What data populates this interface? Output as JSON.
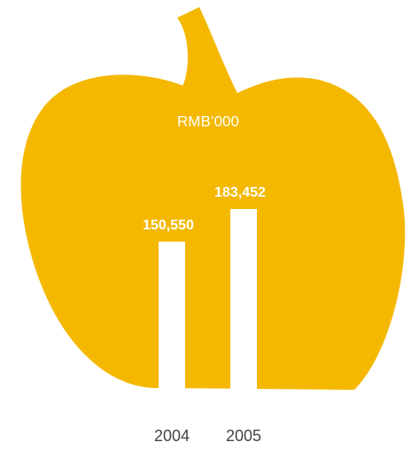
{
  "chart_data": {
    "type": "bar",
    "subtitle": "RMB’000",
    "categories": [
      "2004",
      "2005"
    ],
    "values": [
      150550,
      183452
    ],
    "value_labels": [
      "150,550",
      "183,452"
    ],
    "color": "#ffffff",
    "ylim": [
      0,
      200000
    ]
  }
}
